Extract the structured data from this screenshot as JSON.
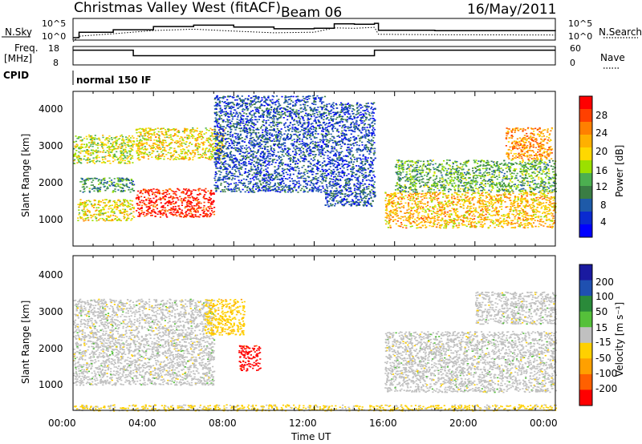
{
  "header": {
    "station": "Christmas Valley West (fitACF)",
    "beam": "Beam 06",
    "date": "16/May/2011"
  },
  "top_panel": {
    "nsky_label": "N.Sky",
    "nsearch_label": "N.Search",
    "left_ticks": [
      "10^5",
      "10^0"
    ],
    "right_ticks": [
      "10^5",
      "10^0"
    ],
    "freq_label": "Freq.",
    "freq_unit": "[MHz]",
    "freq_ticks": [
      "18",
      "8"
    ],
    "nave_ticks": [
      "60",
      "0"
    ],
    "nave_label": "Nave",
    "cpid_label": "CPID",
    "cpid_value": "normal 150 IF"
  },
  "power_panel": {
    "ylabel": "Slant Range [km]",
    "yticks": [
      "4000",
      "3000",
      "2000",
      "1000"
    ],
    "colorbar_label": "Power [dB]",
    "colorbar_ticks": [
      "28",
      "24",
      "20",
      "16",
      "12",
      "8",
      "4"
    ],
    "colorbar_colors": [
      "#ff0000",
      "#ff4000",
      "#ff8000",
      "#ffb000",
      "#ffd800",
      "#9be000",
      "#4caf50",
      "#3a7d44",
      "#1e5aa8",
      "#0a2ad0",
      "#0000ff"
    ]
  },
  "velocity_panel": {
    "ylabel": "Slant Range [km]",
    "yticks": [
      "4000",
      "3000",
      "2000",
      "1000"
    ],
    "colorbar_label": "Velocity [m s⁻¹]",
    "colorbar_ticks": [
      "200",
      "100",
      "50",
      "15",
      "-15",
      "-50",
      "-100",
      "-200"
    ],
    "colorbar_colors": [
      "#1a1aa0",
      "#1f50b0",
      "#2a8a3a",
      "#55c03a",
      "#c0c0c0",
      "#ffd000",
      "#ffa000",
      "#ff6000",
      "#ff0000"
    ]
  },
  "xaxis": {
    "ticks": [
      "00:00",
      "04:00",
      "08:00",
      "12:00",
      "16:00",
      "20:00",
      "00:00"
    ],
    "label": "Time UT"
  },
  "chart_data": [
    {
      "type": "heatmap",
      "title": "Christmas Valley West (fitACF) Beam 06 16/May/2011",
      "xlabel": "Time UT",
      "ylabel": "Slant Range [km]",
      "xlim": [
        "00:00",
        "24:00"
      ],
      "ylim": [
        180,
        4500
      ],
      "colorbar": {
        "label": "Power [dB]",
        "range": [
          0,
          30
        ]
      },
      "regions": [
        {
          "t0": 0.0,
          "t1": 3.0,
          "r0": 2500,
          "r1": 3300,
          "value": 16
        },
        {
          "t0": 0.2,
          "t1": 3.0,
          "r0": 900,
          "r1": 1500,
          "value": 18
        },
        {
          "t0": 0.3,
          "t1": 3.0,
          "r0": 1700,
          "r1": 2100,
          "value": 10
        },
        {
          "t0": 3.1,
          "t1": 7.0,
          "r0": 1000,
          "r1": 1800,
          "value": 28
        },
        {
          "t0": 3.1,
          "t1": 7.5,
          "r0": 2600,
          "r1": 3500,
          "value": 18
        },
        {
          "t0": 7.0,
          "t1": 12.5,
          "r0": 1700,
          "r1": 4400,
          "value": 6
        },
        {
          "t0": 12.5,
          "t1": 15.0,
          "r0": 1300,
          "r1": 4200,
          "value": 6
        },
        {
          "t0": 15.5,
          "t1": 24.0,
          "r0": 700,
          "r1": 1700,
          "value": 20
        },
        {
          "t0": 16.0,
          "t1": 24.0,
          "r0": 1700,
          "r1": 2600,
          "value": 12
        },
        {
          "t0": 21.5,
          "t1": 23.8,
          "r0": 2600,
          "r1": 3500,
          "value": 22
        }
      ]
    },
    {
      "type": "heatmap",
      "xlabel": "Time UT",
      "ylabel": "Slant Range [km]",
      "xlim": [
        "00:00",
        "24:00"
      ],
      "ylim": [
        180,
        4500
      ],
      "colorbar": {
        "label": "Velocity [m s⁻¹]",
        "range": [
          -250,
          250
        ]
      },
      "regions": [
        {
          "t0": 0.0,
          "t1": 7.0,
          "r0": 900,
          "r1": 3300,
          "value": 0
        },
        {
          "t0": 8.2,
          "t1": 9.3,
          "r0": 1300,
          "r1": 2000,
          "value": -220
        },
        {
          "t0": 6.5,
          "t1": 8.5,
          "r0": 2300,
          "r1": 3300,
          "value": -60
        },
        {
          "t0": 15.5,
          "t1": 24.0,
          "r0": 700,
          "r1": 2400,
          "value": 0
        },
        {
          "t0": 20.0,
          "t1": 24.0,
          "r0": 2600,
          "r1": 3500,
          "value": 0
        },
        {
          "t0": 0.0,
          "t1": 24.0,
          "r0": 180,
          "r1": 350,
          "value": -40
        }
      ]
    },
    {
      "type": "line",
      "series": [
        {
          "name": "N.Sky",
          "x": [
            0.0,
            0.3,
            2.0,
            4.0,
            6.0,
            8.0,
            10.0,
            12.0,
            13.0,
            14.0,
            15.0,
            15.2,
            18.0,
            24.0
          ],
          "values": [
            1,
            50,
            300,
            3000,
            8000,
            2000,
            600,
            900,
            20000,
            15000,
            30000,
            200,
            150,
            120
          ]
        },
        {
          "name": "Freq. [MHz]",
          "x": [
            0.0,
            3.0,
            3.0,
            15.0,
            15.0,
            24.0
          ],
          "values": [
            16,
            16,
            13,
            13,
            16,
            16
          ]
        }
      ],
      "cpid": "normal 150 IF"
    }
  ]
}
